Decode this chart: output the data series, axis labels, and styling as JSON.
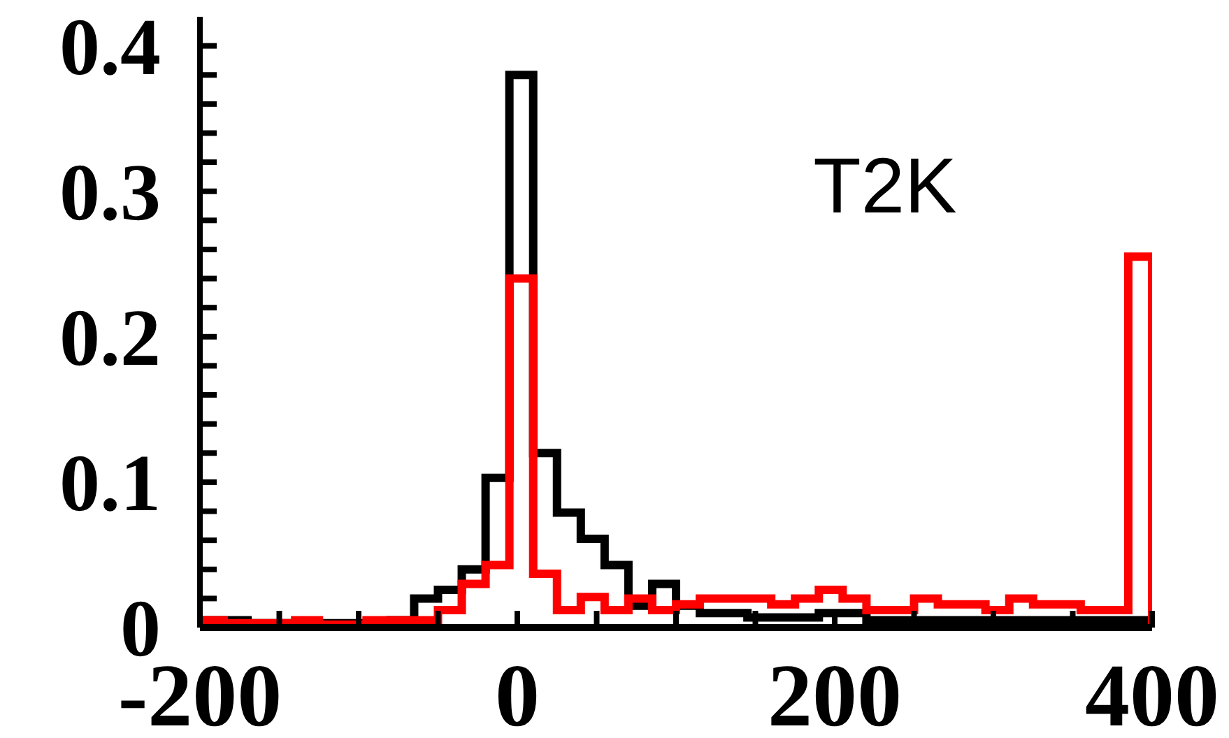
{
  "chart_data": {
    "type": "histogram",
    "annotations": [
      "T2K"
    ],
    "bins": [
      -200,
      -185,
      -170,
      -155,
      -140,
      -125,
      -110,
      -95,
      -80,
      -65,
      -50,
      -35,
      -20,
      -5,
      10,
      25,
      40,
      55,
      70,
      85,
      100,
      115,
      130,
      145,
      160,
      175,
      190,
      205,
      220,
      235,
      250,
      265,
      280,
      295,
      310,
      325,
      340,
      355,
      370,
      385,
      400
    ],
    "series": [
      {
        "color": "#000000",
        "values": [
          0.005,
          0.005,
          0.003,
          0.003,
          0.003,
          0.003,
          0.003,
          0.003,
          0.005,
          0.02,
          0.026,
          0.04,
          0.103,
          0.38,
          0.12,
          0.079,
          0.061,
          0.043,
          0.015,
          0.03,
          0.015,
          0.01,
          0.01,
          0.007,
          0.007,
          0.007,
          0.01,
          0.01,
          0.005,
          0.005,
          0.005,
          0.005,
          0.005,
          0.005,
          0.005,
          0.005,
          0.005,
          0.005,
          0.005,
          0.005
        ]
      },
      {
        "color": "#ff0000",
        "values": [
          0.005,
          0.003,
          0.003,
          0.003,
          0.005,
          0.002,
          0.002,
          0.005,
          0.005,
          0.005,
          0.012,
          0.03,
          0.043,
          0.24,
          0.037,
          0.012,
          0.021,
          0.012,
          0.02,
          0.012,
          0.016,
          0.02,
          0.02,
          0.02,
          0.016,
          0.02,
          0.026,
          0.02,
          0.012,
          0.012,
          0.02,
          0.016,
          0.016,
          0.012,
          0.02,
          0.016,
          0.016,
          0.012,
          0.012,
          0.255
        ]
      }
    ],
    "xlim": [
      -200,
      400
    ],
    "ylim": [
      0,
      0.42
    ],
    "xticks": [
      -200,
      {
        "value": -150,
        "label": null
      },
      {
        "value": -100,
        "label": null
      },
      {
        "value": -50,
        "label": null
      },
      0,
      {
        "value": 50,
        "label": null
      },
      {
        "value": 100,
        "label": null
      },
      {
        "value": 150,
        "label": null
      },
      200,
      {
        "value": 250,
        "label": null
      },
      {
        "value": 300,
        "label": null
      },
      {
        "value": 350,
        "label": null
      },
      400
    ],
    "yticks": [
      0,
      {
        "value": 0.02,
        "label": null
      },
      {
        "value": 0.04,
        "label": null
      },
      {
        "value": 0.06,
        "label": null
      },
      {
        "value": 0.08,
        "label": null
      },
      0.1,
      {
        "value": 0.12,
        "label": null
      },
      {
        "value": 0.14,
        "label": null
      },
      {
        "value": 0.16,
        "label": null
      },
      {
        "value": 0.18,
        "label": null
      },
      0.2,
      {
        "value": 0.22,
        "label": null
      },
      {
        "value": 0.24,
        "label": null
      },
      {
        "value": 0.26,
        "label": null
      },
      {
        "value": 0.28,
        "label": null
      },
      0.3,
      {
        "value": 0.32,
        "label": null
      },
      {
        "value": 0.34,
        "label": null
      },
      {
        "value": 0.36,
        "label": null
      },
      {
        "value": 0.38,
        "label": null
      },
      0.4
    ]
  }
}
